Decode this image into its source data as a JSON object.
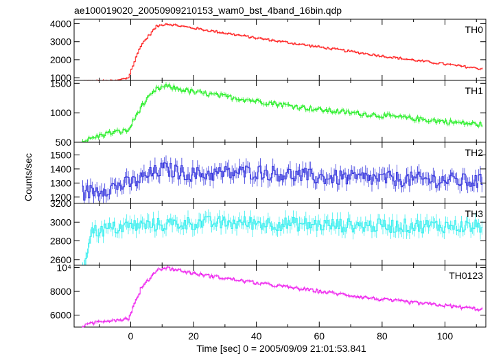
{
  "title": "ae100019020_20050909210153_wam0_bst_4band_16bin.qdp",
  "ylabel": "Counts/sec",
  "xlabel": "Time [sec] 0 = 2005/09/09 21:01:53.841",
  "x_ticks": [
    0,
    20,
    40,
    60,
    80,
    100
  ],
  "xlim": [
    -18,
    113
  ],
  "chart_data": [
    {
      "type": "line",
      "series_label": "TH0",
      "color": "#ff2020",
      "ylim": [
        850,
        4250
      ],
      "y_ticks": [
        "1000",
        "2000",
        "3000",
        "4000"
      ],
      "shape": "burst",
      "baseline": 800,
      "peak": 4000,
      "end": 1500,
      "noise": 60,
      "points": [
        {
          "x": -15,
          "y": 800
        },
        {
          "x": -5,
          "y": 820
        },
        {
          "x": -1,
          "y": 1000
        },
        {
          "x": 3,
          "y": 2800
        },
        {
          "x": 8,
          "y": 3850
        },
        {
          "x": 11,
          "y": 4000
        },
        {
          "x": 20,
          "y": 3750
        },
        {
          "x": 40,
          "y": 3200
        },
        {
          "x": 60,
          "y": 2700
        },
        {
          "x": 80,
          "y": 2200
        },
        {
          "x": 100,
          "y": 1750
        },
        {
          "x": 111,
          "y": 1500
        }
      ]
    },
    {
      "type": "line",
      "series_label": "TH1",
      "color": "#22ee22",
      "ylim": [
        500,
        1550
      ],
      "y_ticks": [
        "500",
        "1000",
        "1500"
      ],
      "shape": "burst",
      "baseline": 520,
      "peak": 1450,
      "end": 800,
      "noise": 40,
      "points": [
        {
          "x": -15,
          "y": 520
        },
        {
          "x": -8,
          "y": 650
        },
        {
          "x": -1,
          "y": 700
        },
        {
          "x": 3,
          "y": 1100
        },
        {
          "x": 8,
          "y": 1400
        },
        {
          "x": 11,
          "y": 1450
        },
        {
          "x": 20,
          "y": 1350
        },
        {
          "x": 40,
          "y": 1200
        },
        {
          "x": 60,
          "y": 1050
        },
        {
          "x": 80,
          "y": 950
        },
        {
          "x": 100,
          "y": 850
        },
        {
          "x": 111,
          "y": 800
        }
      ]
    },
    {
      "type": "line",
      "series_label": "TH2",
      "color": "#3333dd",
      "ylim": [
        1155,
        1590
      ],
      "y_ticks": [
        "1200",
        "1300",
        "1400",
        "1500"
      ],
      "shape": "flat",
      "baseline": 1330,
      "noise": 55,
      "points": [
        {
          "x": -15,
          "y": 1230
        },
        {
          "x": 0,
          "y": 1300
        },
        {
          "x": 10,
          "y": 1400
        },
        {
          "x": 20,
          "y": 1360
        },
        {
          "x": 40,
          "y": 1380
        },
        {
          "x": 60,
          "y": 1340
        },
        {
          "x": 80,
          "y": 1330
        },
        {
          "x": 100,
          "y": 1320
        },
        {
          "x": 111,
          "y": 1310
        }
      ]
    },
    {
      "type": "line",
      "series_label": "TH3",
      "color": "#33eeee",
      "ylim": [
        2540,
        3200
      ],
      "y_ticks": [
        "2600",
        "2800",
        "3000",
        "3200"
      ],
      "shape": "flat",
      "baseline": 2980,
      "noise": 75,
      "points": [
        {
          "x": -15,
          "y": 2550
        },
        {
          "x": -13,
          "y": 2900
        },
        {
          "x": 0,
          "y": 2960
        },
        {
          "x": 20,
          "y": 2990
        },
        {
          "x": 40,
          "y": 2990
        },
        {
          "x": 60,
          "y": 2970
        },
        {
          "x": 80,
          "y": 2960
        },
        {
          "x": 100,
          "y": 2960
        },
        {
          "x": 111,
          "y": 2950
        }
      ]
    },
    {
      "type": "line",
      "series_label": "TH0123",
      "color": "#ee22ee",
      "ylim": [
        5000,
        10200
      ],
      "y_ticks": [
        "6000",
        "8000",
        "10⁴"
      ],
      "shape": "burst",
      "baseline": 5500,
      "peak": 10000,
      "end": 6500,
      "noise": 130,
      "points": [
        {
          "x": -15,
          "y": 5100
        },
        {
          "x": -10,
          "y": 5500
        },
        {
          "x": -1,
          "y": 5700
        },
        {
          "x": 3,
          "y": 8200
        },
        {
          "x": 8,
          "y": 9800
        },
        {
          "x": 11,
          "y": 10000
        },
        {
          "x": 20,
          "y": 9500
        },
        {
          "x": 40,
          "y": 8700
        },
        {
          "x": 60,
          "y": 8000
        },
        {
          "x": 80,
          "y": 7300
        },
        {
          "x": 100,
          "y": 6800
        },
        {
          "x": 111,
          "y": 6500
        }
      ]
    }
  ]
}
